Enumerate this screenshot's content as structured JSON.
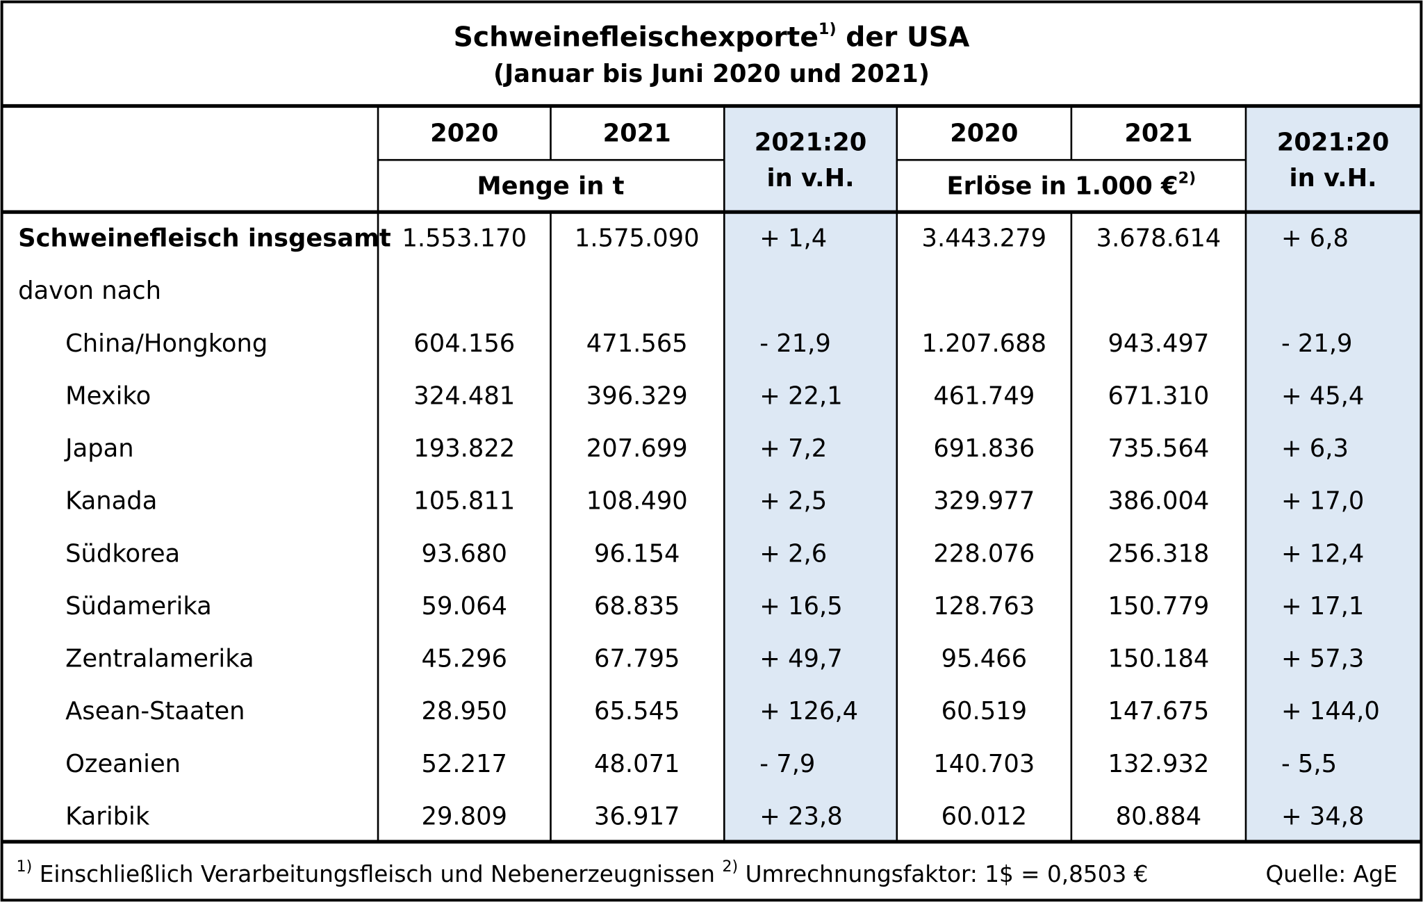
{
  "header": {
    "title": "Schweinefleischexporte",
    "title_sup": "1)",
    "title_rest": " der USA",
    "subtitle": "(Januar bis Juni 2020 und 2021)"
  },
  "columns": {
    "years": [
      "2020",
      "2021",
      "2020",
      "2021"
    ],
    "change": [
      "2021:20",
      "in v.H."
    ],
    "unit_volume": "Menge in t",
    "unit_revenue": "Erlöse in 1.000 €",
    "unit_revenue_sup": "2)"
  },
  "total": {
    "label": "Schweinefleisch insgesamt",
    "values": [
      "1.553.170",
      "1.575.090",
      "+ 1,4",
      "3.443.279",
      "3.678.614",
      "+ 6,8"
    ]
  },
  "breakdown_label": "davon nach",
  "countries": [
    {
      "label": "China/Hongkong",
      "values": [
        "604.156",
        "471.565",
        "- 21,9",
        "1.207.688",
        "943.497",
        "- 21,9"
      ]
    },
    {
      "label": "Mexiko",
      "values": [
        "324.481",
        "396.329",
        "+ 22,1",
        "461.749",
        "671.310",
        "+ 45,4"
      ]
    },
    {
      "label": "Japan",
      "values": [
        "193.822",
        "207.699",
        "+ 7,2",
        "691.836",
        "735.564",
        "+ 6,3"
      ]
    },
    {
      "label": "Kanada",
      "values": [
        "105.811",
        "108.490",
        "+ 2,5",
        "329.977",
        "386.004",
        "+ 17,0"
      ]
    },
    {
      "label": "Südkorea",
      "values": [
        "93.680",
        "96.154",
        "+ 2,6",
        "228.076",
        "256.318",
        "+ 12,4"
      ]
    },
    {
      "label": "Südamerika",
      "values": [
        "59.064",
        "68.835",
        "+ 16,5",
        "128.763",
        "150.779",
        "+ 17,1"
      ]
    },
    {
      "label": "Zentralamerika",
      "values": [
        "45.296",
        "67.795",
        "+ 49,7",
        "95.466",
        "150.184",
        "+ 57,3"
      ]
    },
    {
      "label": "Asean-Staaten",
      "values": [
        "28.950",
        "65.545",
        "+ 126,4",
        "60.519",
        "147.675",
        "+ 144,0"
      ]
    },
    {
      "label": "Ozeanien",
      "values": [
        "52.217",
        "48.071",
        "- 7,9",
        "140.703",
        "132.932",
        "- 5,5"
      ]
    },
    {
      "label": "Karibik",
      "values": [
        "29.809",
        "36.917",
        "+ 23,8",
        "60.012",
        "80.884",
        "+ 34,8"
      ]
    }
  ],
  "footer": {
    "note1_sup": "1)",
    "note1": " Einschließlich Verarbeitungsfleisch und Nebenerzeugnissen ",
    "note2_sup": "2)",
    "note2": " Umrechnungsfaktor: 1$ = 0,8503 €",
    "source": "Quelle: AgE"
  }
}
